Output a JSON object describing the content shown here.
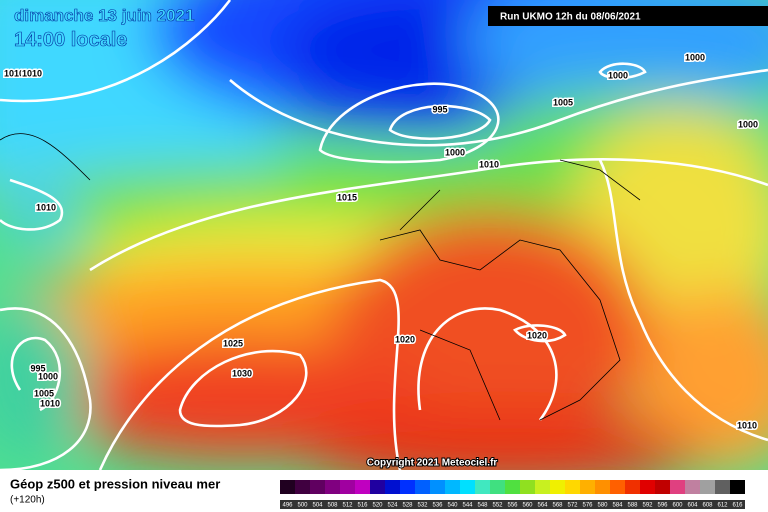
{
  "header": {
    "date": "dimanche 13 juin 2021",
    "time": "14:00 locale",
    "run": "Run UKMO 12h du 08/06/2021"
  },
  "isobar_labels": [
    "1010",
    "1010",
    "995",
    "1000",
    "1000",
    "1005",
    "1000",
    "1000",
    "1010",
    "1015",
    "1010",
    "1025",
    "1030",
    "1020",
    "1020",
    "995",
    "1000",
    "1005",
    "1010",
    "1010"
  ],
  "copyright": "Copyright 2021 Meteociel.fr",
  "legend": {
    "title": "Géop z500 et pression niveau mer",
    "subtitle": "(+120h)",
    "scale": [
      496,
      500,
      504,
      508,
      512,
      516,
      520,
      524,
      528,
      532,
      536,
      540,
      544,
      548,
      552,
      556,
      560,
      564,
      568,
      572,
      576,
      580,
      584,
      588,
      592,
      596,
      600,
      604,
      608,
      612,
      616
    ]
  }
}
